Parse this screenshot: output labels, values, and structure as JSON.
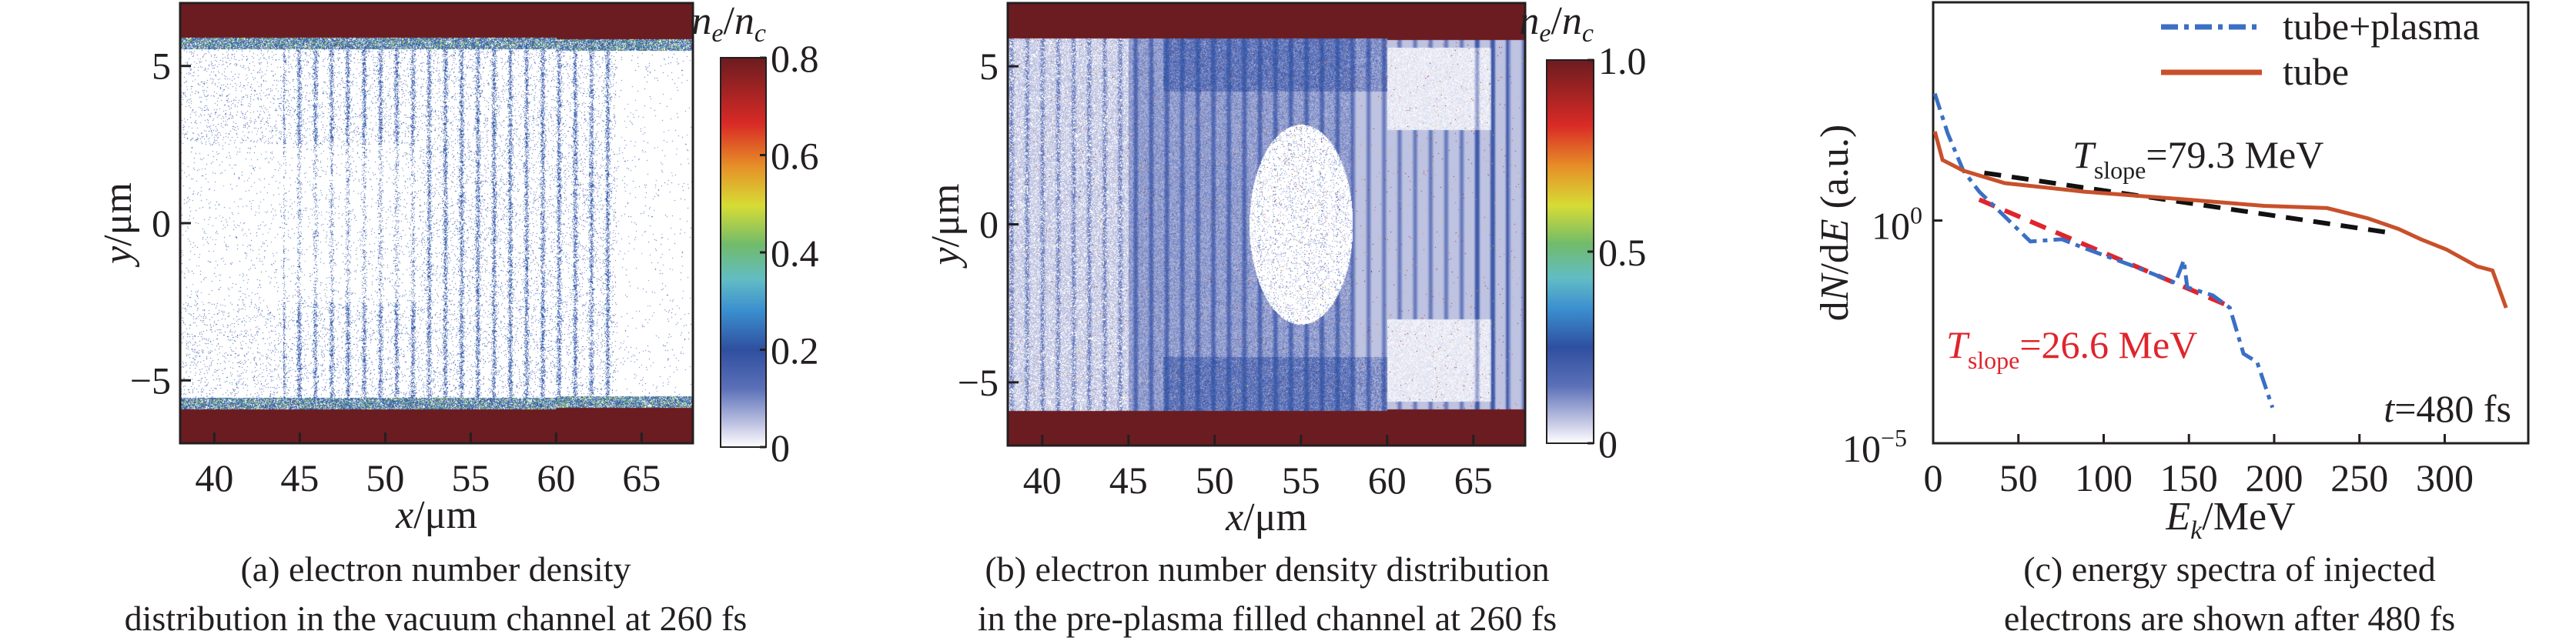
{
  "colors": {
    "wall": "#6b1c20",
    "tube": "#c8502a",
    "tube_plasma": "#3a6fc4",
    "fit_tube": "#111111",
    "fit_plasma": "#e0242c",
    "annotation_red": "#e0242c"
  },
  "chart_data": [
    {
      "type": "heatmap",
      "panel": "a",
      "caption": [
        "(a) electron number density",
        "distribution in the vacuum channel at 260 fs"
      ],
      "xlabel": {
        "var": "x",
        "unit": "/μm"
      },
      "ylabel": {
        "var": "y",
        "unit": "/μm"
      },
      "xlim": [
        38,
        68
      ],
      "ylim": [
        -7,
        7
      ],
      "xticks": [
        40,
        45,
        50,
        55,
        60,
        65
      ],
      "yticks": [
        5,
        0,
        -5
      ],
      "ytick_labels": [
        "5",
        "0",
        "−5"
      ],
      "colorbar": {
        "label_n": "n",
        "label_e": "e",
        "label_slash": "/",
        "label_c": "c",
        "range": [
          0,
          0.8
        ],
        "ticks": [
          "0",
          "0.2",
          "0.4",
          "0.6",
          "0.8"
        ],
        "tick_values": [
          0,
          0.2,
          0.4,
          0.6,
          0.8
        ]
      }
    },
    {
      "type": "heatmap",
      "panel": "b",
      "caption": [
        "(b) electron number density distribution",
        "in the pre-plasma filled channel at 260 fs"
      ],
      "xlabel": {
        "var": "x",
        "unit": "/μm"
      },
      "ylabel": {
        "var": "y",
        "unit": "/μm"
      },
      "xlim": [
        38,
        68
      ],
      "ylim": [
        -7,
        7
      ],
      "xticks": [
        40,
        45,
        50,
        55,
        60,
        65
      ],
      "yticks": [
        5,
        0,
        -5
      ],
      "ytick_labels": [
        "5",
        "0",
        "−5"
      ],
      "colorbar": {
        "label_n": "n",
        "label_e": "e",
        "label_slash": "/",
        "label_c": "c",
        "range": [
          0,
          1.0
        ],
        "ticks": [
          "0",
          "0.5",
          "1.0"
        ],
        "tick_values": [
          0,
          0.5,
          1.0
        ]
      }
    },
    {
      "type": "line",
      "panel": "c",
      "caption": [
        "(c) energy spectra of injected",
        "electrons are shown after 480 fs"
      ],
      "xlabel": {
        "var": "E",
        "sub": "k",
        "unit": "/MeV"
      },
      "ylabel": {
        "pre": "d",
        "var": "N",
        "mid": "/d",
        "var2": "E",
        "unit": " (a.u.)"
      },
      "xlim": [
        0,
        349
      ],
      "ylim_log10": [
        -5,
        4.9
      ],
      "yscale": "log",
      "xticks": [
        0,
        50,
        100,
        150,
        200,
        250,
        300
      ],
      "yticks": [
        {
          "base": "10",
          "exp": "0",
          "log10": 0
        },
        {
          "base": "10",
          "exp": "−5",
          "log10": -5
        }
      ],
      "legend": {
        "placement": "top-right",
        "entries": [
          "tube+plasma",
          "tube"
        ]
      },
      "series": [
        {
          "name": "tube+plasma",
          "style": "dashdot",
          "x": [
            1,
            8.5,
            17.7,
            27,
            42,
            57,
            75.5,
            88,
            118,
            142,
            147,
            149,
            164,
            174,
            182,
            190,
            199
          ],
          "log10_y": [
            2.85,
            1.96,
            1.12,
            0.65,
            0.09,
            -0.47,
            -0.42,
            -0.61,
            -1.03,
            -1.4,
            -0.89,
            -1.5,
            -1.68,
            -1.96,
            -2.99,
            -3.18,
            -4.2
          ]
        },
        {
          "name": "tube",
          "style": "solid",
          "x": [
            1,
            5.5,
            17.7,
            42,
            88,
            149,
            194,
            231,
            255,
            273,
            286,
            301,
            319,
            328,
            336
          ],
          "log10_y": [
            2.0,
            1.36,
            1.12,
            0.84,
            0.65,
            0.47,
            0.33,
            0.28,
            0.05,
            -0.19,
            -0.42,
            -0.65,
            -1.03,
            -1.12,
            -1.96
          ]
        }
      ],
      "fits": [
        {
          "name": "tube fit",
          "x": [
            30,
            269
          ],
          "log10_y": [
            1.07,
            -0.28
          ]
        },
        {
          "name": "tube+plasma fit",
          "x": [
            27,
            176
          ],
          "log10_y": [
            0.47,
            -1.96
          ]
        }
      ],
      "annotations": {
        "t_slope_tube": {
          "T": "T",
          "sub": "slope",
          "value": "=79.3 MeV"
        },
        "t_slope_plasma": {
          "T": "T",
          "sub": "slope",
          "value": "=26.6 MeV"
        },
        "time": {
          "t": "t",
          "value": "=480 fs"
        }
      }
    }
  ]
}
